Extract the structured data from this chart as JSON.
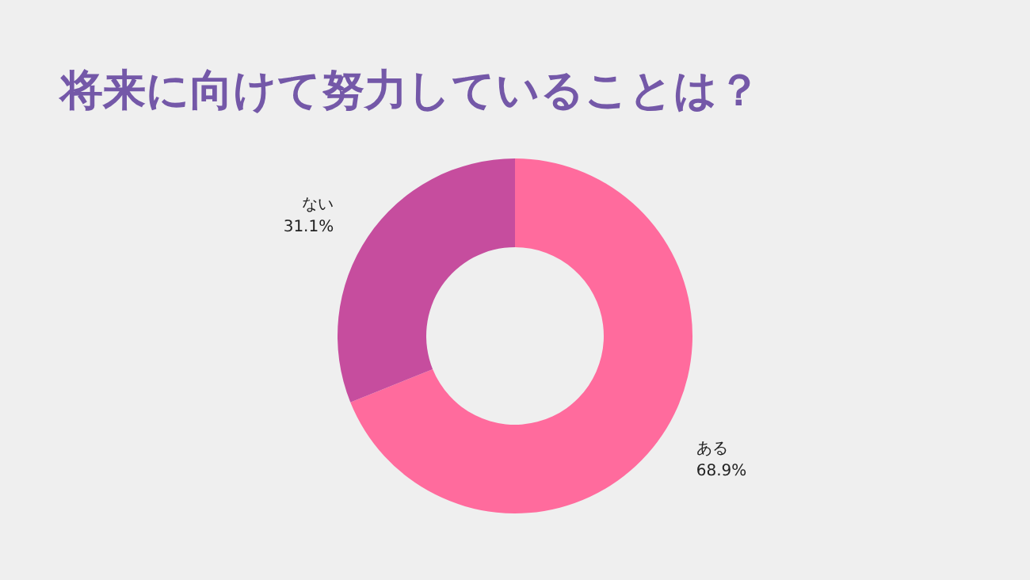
{
  "chart_data": {
    "type": "donut",
    "title": "将来に向けて努力していることは？",
    "categories": [
      "ある",
      "ない"
    ],
    "values": [
      68.9,
      31.1
    ],
    "colors": [
      "#ff6b9d",
      "#c64d9e"
    ],
    "value_labels": [
      "68.9%",
      "31.1%"
    ]
  }
}
